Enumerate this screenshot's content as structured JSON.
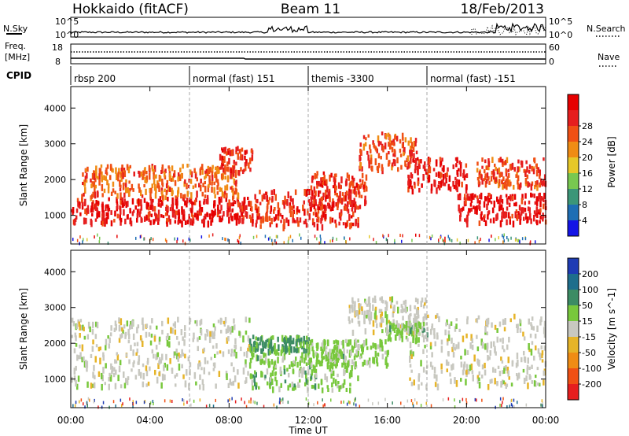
{
  "header": {
    "station": "Hokkaido (fitACF)",
    "beam": "Beam 11",
    "date": "18/Feb/2013"
  },
  "noise_panel": {
    "left_label": "N.Sky",
    "left_ticks": [
      "10^5",
      "10^0"
    ],
    "right_label": "N.Search",
    "right_ticks": [
      "10^5",
      "10^0"
    ]
  },
  "freq_panel": {
    "left_label_line1": "Freq.",
    "left_label_line2": "[MHz]",
    "left_ticks": [
      "18",
      "8"
    ],
    "right_label": "Nave",
    "right_ticks": [
      "60",
      "0"
    ]
  },
  "cpid_panel": {
    "label": "CPID",
    "segments": [
      {
        "label": "rbsp 200",
        "start_hour": 0,
        "end_hour": 6
      },
      {
        "label": "normal (fast) 151",
        "start_hour": 6,
        "end_hour": 12
      },
      {
        "label": "themis -3300",
        "start_hour": 12,
        "end_hour": 18
      },
      {
        "label": "normal (fast) -151",
        "start_hour": 18,
        "end_hour": 24
      }
    ]
  },
  "x_axis": {
    "label": "Time UT",
    "ticks": [
      "00:00",
      "04:00",
      "08:00",
      "12:00",
      "16:00",
      "20:00",
      "00:00"
    ],
    "range_hours": [
      0,
      24
    ]
  },
  "power_panel": {
    "ylabel": "Slant Range [km]",
    "yticks": [
      "1000",
      "2000",
      "3000",
      "4000"
    ],
    "colorbar_label": "Power [dB]",
    "colorbar_ticks": [
      "4",
      "8",
      "12",
      "16",
      "20",
      "24",
      "28"
    ],
    "colors": [
      "#1414e6",
      "#1e6eb4",
      "#3c9678",
      "#78c850",
      "#e6c828",
      "#f08c14",
      "#f05014",
      "#e61e1e",
      "#e60000"
    ]
  },
  "velocity_panel": {
    "ylabel": "Slant Range [km]",
    "yticks": [
      "1000",
      "2000",
      "3000",
      "4000"
    ],
    "colorbar_label": "Velocity [m s^-1]",
    "colorbar_ticks": [
      "200",
      "100",
      "50",
      "15",
      "-15",
      "-50",
      "-100",
      "-200"
    ],
    "colors": [
      "#1e3cb4",
      "#1e6e8c",
      "#3c8c64",
      "#78c83c",
      "#c8c8c0",
      "#e6b428",
      "#f08c14",
      "#f05014",
      "#e61e1e"
    ]
  },
  "chart_data": [
    {
      "type": "heatmap",
      "title": "Power",
      "xlabel": "Time UT",
      "ylabel": "Slant Range [km]",
      "xlim": [
        0,
        24
      ],
      "ylim": [
        200,
        4600
      ],
      "colorbar": "Power [dB]",
      "crange": [
        0,
        32
      ],
      "bands": [
        {
          "t0": 0.0,
          "t1": 9.0,
          "r0": 800,
          "r1": 1500,
          "value": 28
        },
        {
          "t0": 0.5,
          "t1": 8.5,
          "r0": 1500,
          "r1": 2400,
          "value": 22
        },
        {
          "t0": 7.5,
          "t1": 9.2,
          "r0": 2200,
          "r1": 2900,
          "value": 26
        },
        {
          "t0": 9.0,
          "t1": 14.5,
          "r0": 700,
          "r1": 1700,
          "value": 26
        },
        {
          "t0": 12.0,
          "t1": 15.0,
          "r0": 1200,
          "r1": 2200,
          "value": 26
        },
        {
          "t0": 14.5,
          "t1": 17.5,
          "r0": 2300,
          "r1": 3300,
          "value": 24
        },
        {
          "t0": 17.0,
          "t1": 20.0,
          "r0": 1700,
          "r1": 2600,
          "value": 28
        },
        {
          "t0": 19.5,
          "t1": 24.0,
          "r0": 800,
          "r1": 1600,
          "value": 28
        },
        {
          "t0": 20.5,
          "t1": 24.0,
          "r0": 1800,
          "r1": 2600,
          "value": 24
        }
      ]
    },
    {
      "type": "heatmap",
      "title": "Velocity",
      "xlabel": "Time UT",
      "ylabel": "Slant Range [km]",
      "xlim": [
        0,
        24
      ],
      "ylim": [
        200,
        4600
      ],
      "colorbar": "Velocity [m s^-1]",
      "crange": [
        -200,
        200
      ],
      "bands": [
        {
          "t0": 0.0,
          "t1": 9.0,
          "r0": 800,
          "r1": 2700,
          "value": 0
        },
        {
          "t0": 9.0,
          "t1": 12.0,
          "r0": 1800,
          "r1": 2200,
          "value": 80
        },
        {
          "t0": 9.0,
          "t1": 14.5,
          "r0": 700,
          "r1": 1800,
          "value": 40
        },
        {
          "t0": 12.0,
          "t1": 16.0,
          "r0": 1400,
          "r1": 2100,
          "value": 35
        },
        {
          "t0": 14.0,
          "t1": 18.0,
          "r0": 2300,
          "r1": 3300,
          "value": 0
        },
        {
          "t0": 16.0,
          "t1": 18.0,
          "r0": 2100,
          "r1": 2600,
          "value": 40
        },
        {
          "t0": 17.0,
          "t1": 24.0,
          "r0": 800,
          "r1": 2800,
          "value": 0
        }
      ]
    }
  ]
}
